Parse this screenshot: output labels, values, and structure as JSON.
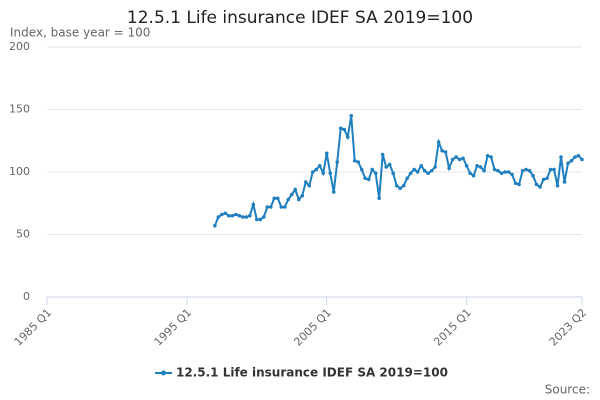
{
  "chart_data": {
    "type": "line",
    "title": "12.5.1 Life insurance IDEF SA 2019=100",
    "y_label": "Index, base year = 100",
    "source": "Source:",
    "categories": [
      "1985 Q1",
      null,
      null,
      null,
      null,
      null,
      null,
      null,
      null,
      null,
      null,
      null,
      null,
      null,
      null,
      null,
      null,
      null,
      null,
      null,
      null,
      null,
      null,
      null,
      null,
      null,
      null,
      null,
      null,
      null,
      null,
      null,
      null,
      null,
      null,
      null,
      null,
      null,
      null,
      null,
      "1995 Q1",
      null,
      null,
      null,
      null,
      null,
      null,
      null,
      null,
      null,
      null,
      null,
      null,
      null,
      null,
      null,
      null,
      null,
      null,
      null,
      null,
      null,
      null,
      null,
      null,
      null,
      null,
      null,
      null,
      null,
      null,
      null,
      null,
      null,
      null,
      null,
      null,
      null,
      null,
      null,
      "2005 Q1",
      null,
      null,
      null,
      null,
      null,
      null,
      null,
      null,
      null,
      null,
      null,
      null,
      null,
      null,
      null,
      null,
      null,
      null,
      null,
      null,
      null,
      null,
      null,
      null,
      null,
      null,
      null,
      null,
      null,
      null,
      null,
      null,
      null,
      null,
      null,
      null,
      null,
      null,
      null,
      "2015 Q1",
      null,
      null,
      null,
      null,
      null,
      null,
      null,
      null,
      null,
      null,
      null,
      null,
      null,
      null,
      null,
      null,
      null,
      null,
      null,
      null,
      null,
      null,
      null,
      null,
      null,
      null,
      null,
      null,
      null,
      null,
      null,
      null,
      "2023 Q2"
    ],
    "series": [
      {
        "name": "12.5.1 Life insurance IDEF SA 2019=100",
        "color": "#1f7fbf",
        "values": [
          null,
          null,
          null,
          null,
          null,
          null,
          null,
          null,
          null,
          null,
          null,
          null,
          null,
          null,
          null,
          null,
          null,
          null,
          null,
          null,
          null,
          null,
          null,
          null,
          null,
          null,
          null,
          null,
          null,
          null,
          null,
          null,
          null,
          null,
          null,
          null,
          null,
          null,
          null,
          null,
          null,
          null,
          null,
          null,
          null,
          null,
          null,
          null,
          57,
          64,
          66,
          67,
          65,
          65,
          66,
          65,
          64,
          64,
          65,
          74,
          62,
          62,
          64,
          72,
          72,
          79,
          79,
          72,
          72,
          78,
          82,
          86,
          78,
          81,
          92,
          89,
          100,
          102,
          105,
          99,
          115,
          99,
          84,
          108,
          135,
          134,
          128,
          145,
          109,
          108,
          102,
          95,
          94,
          102,
          99,
          79,
          114,
          104,
          106,
          99,
          89,
          87,
          89,
          95,
          99,
          102,
          100,
          105,
          101,
          99,
          101,
          104,
          124,
          117,
          116,
          103,
          110,
          112,
          110,
          111,
          105,
          99,
          97,
          105,
          104,
          101,
          113,
          112,
          102,
          101,
          99,
          100,
          100,
          98,
          91,
          90,
          101,
          102,
          101,
          97,
          90,
          88,
          94,
          95,
          102,
          102,
          89,
          112,
          92,
          107,
          109,
          112,
          113,
          110
        ]
      }
    ],
    "ylim": [
      0,
      200
    ],
    "yticks": [
      0,
      50,
      100,
      150,
      200
    ],
    "grid": true
  }
}
